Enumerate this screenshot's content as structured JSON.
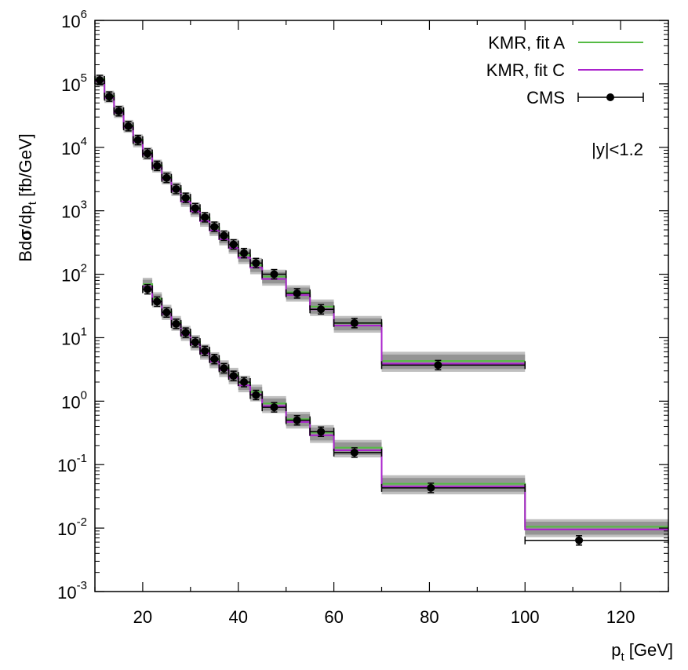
{
  "chart_data": {
    "type": "step-histogram-with-points",
    "xlabel": "p",
    "xlabel_sub": "t",
    "xlabel_unit": " [GeV]",
    "ylabel_parts": [
      "Bd",
      "σ",
      "/dp",
      "t",
      " [fb/GeV]"
    ],
    "annotation": "|y|<1.2",
    "xlim": [
      10,
      130
    ],
    "ylim_log10": [
      -3,
      6
    ],
    "x_ticks": [
      20,
      40,
      60,
      80,
      100,
      120
    ],
    "y_ticks": [
      {
        "base": "10",
        "exp": "6",
        "value": 6
      },
      {
        "base": "10",
        "exp": "5",
        "value": 5
      },
      {
        "base": "10",
        "exp": "4",
        "value": 4
      },
      {
        "base": "10",
        "exp": "3",
        "value": 3
      },
      {
        "base": "10",
        "exp": "2",
        "value": 2
      },
      {
        "base": "10",
        "exp": "1",
        "value": 1
      },
      {
        "base": "10",
        "exp": "0",
        "value": 0
      },
      {
        "base": "10",
        "exp": "-1",
        "value": -1
      },
      {
        "base": "10",
        "exp": "-2",
        "value": -2
      },
      {
        "base": "10",
        "exp": "-3",
        "value": -3
      }
    ],
    "legend": [
      {
        "label": "KMR, fit A",
        "color": "#55bb44",
        "kind": "line"
      },
      {
        "label": "KMR, fit C",
        "color": "#aa22cc",
        "kind": "line"
      },
      {
        "label": "CMS",
        "color": "#000000",
        "kind": "point"
      }
    ],
    "band_color": "#9a9a9a",
    "series": [
      {
        "name": "upper",
        "bins": [
          {
            "lo": 10,
            "hi": 12,
            "fitA": 120000,
            "fitC": 110000,
            "band": [
              90000,
              140000
            ],
            "cms": 115000
          },
          {
            "lo": 12,
            "hi": 14,
            "fitA": 65000,
            "fitC": 60000,
            "band": [
              50000,
              78000
            ],
            "cms": 63000
          },
          {
            "lo": 14,
            "hi": 16,
            "fitA": 38000,
            "fitC": 35000,
            "band": [
              29000,
              46000
            ],
            "cms": 37000
          },
          {
            "lo": 16,
            "hi": 18,
            "fitA": 22000,
            "fitC": 20500,
            "band": [
              17000,
              27000
            ],
            "cms": 21500
          },
          {
            "lo": 18,
            "hi": 20,
            "fitA": 13200,
            "fitC": 12200,
            "band": [
              10000,
              16000
            ],
            "cms": 13000
          },
          {
            "lo": 20,
            "hi": 22,
            "fitA": 8200,
            "fitC": 7600,
            "band": [
              6300,
              10000
            ],
            "cms": 8000
          },
          {
            "lo": 22,
            "hi": 24,
            "fitA": 5200,
            "fitC": 4800,
            "band": [
              4000,
              6400
            ],
            "cms": 5100
          },
          {
            "lo": 24,
            "hi": 26,
            "fitA": 3400,
            "fitC": 3100,
            "band": [
              2600,
              4200
            ],
            "cms": 3300
          },
          {
            "lo": 26,
            "hi": 28,
            "fitA": 2250,
            "fitC": 2050,
            "band": [
              1700,
              2800
            ],
            "cms": 2200
          },
          {
            "lo": 28,
            "hi": 30,
            "fitA": 1550,
            "fitC": 1400,
            "band": [
              1150,
              1950
            ],
            "cms": 1600
          },
          {
            "lo": 30,
            "hi": 32,
            "fitA": 1080,
            "fitC": 980,
            "band": [
              800,
              1350
            ],
            "cms": 1100
          },
          {
            "lo": 32,
            "hi": 34,
            "fitA": 760,
            "fitC": 690,
            "band": [
              560,
              950
            ],
            "cms": 790
          },
          {
            "lo": 34,
            "hi": 36,
            "fitA": 540,
            "fitC": 490,
            "band": [
              400,
              680
            ],
            "cms": 560
          },
          {
            "lo": 36,
            "hi": 38,
            "fitA": 390,
            "fitC": 355,
            "band": [
              285,
              490
            ],
            "cms": 405
          },
          {
            "lo": 38,
            "hi": 40,
            "fitA": 285,
            "fitC": 260,
            "band": [
              210,
              360
            ],
            "cms": 295
          },
          {
            "lo": 40,
            "hi": 42.5,
            "fitA": 200,
            "fitC": 182,
            "band": [
              145,
              255
            ],
            "cms": 215
          },
          {
            "lo": 42.5,
            "hi": 45,
            "fitA": 140,
            "fitC": 127,
            "band": [
              100,
              180
            ],
            "cms": 150
          },
          {
            "lo": 45,
            "hi": 50,
            "fitA": 92,
            "fitC": 84,
            "band": [
              66,
              118
            ],
            "cms": 100
          },
          {
            "lo": 50,
            "hi": 55,
            "fitA": 52,
            "fitC": 47,
            "band": [
              37,
              67
            ],
            "cms": 50
          },
          {
            "lo": 55,
            "hi": 60,
            "fitA": 31,
            "fitC": 28,
            "band": [
              22,
              40
            ],
            "cms": 28
          },
          {
            "lo": 60,
            "hi": 70,
            "fitA": 17,
            "fitC": 15.5,
            "band": [
              12,
              22
            ],
            "cms": 17
          },
          {
            "lo": 70,
            "hi": 100,
            "fitA": 4.3,
            "fitC": 3.9,
            "band": [
              2.9,
              6.0
            ],
            "cms": 3.7
          }
        ],
        "cms_x": [
          11,
          13,
          15,
          17,
          19,
          21,
          23,
          25,
          27,
          29,
          31,
          33,
          35,
          37,
          39,
          41.2,
          43.7,
          47.5,
          52.3,
          57.3,
          64.3,
          81.8
        ]
      },
      {
        "name": "lower",
        "bins": [
          {
            "lo": 20,
            "hi": 22,
            "fitA": 70,
            "fitC": 64,
            "band": [
              52,
              88
            ],
            "cms": 58
          },
          {
            "lo": 22,
            "hi": 24,
            "fitA": 41,
            "fitC": 37,
            "band": [
              30,
              52
            ],
            "cms": 37
          },
          {
            "lo": 24,
            "hi": 26,
            "fitA": 26,
            "fitC": 23.5,
            "band": [
              19,
              33
            ],
            "cms": 25
          },
          {
            "lo": 26,
            "hi": 28,
            "fitA": 17.5,
            "fitC": 16,
            "band": [
              12.8,
              22
            ],
            "cms": 16.5
          },
          {
            "lo": 28,
            "hi": 30,
            "fitA": 12.2,
            "fitC": 11.1,
            "band": [
              8.9,
              15.4
            ],
            "cms": 12
          },
          {
            "lo": 30,
            "hi": 32,
            "fitA": 8.7,
            "fitC": 7.9,
            "band": [
              6.3,
              11
            ],
            "cms": 8.5
          },
          {
            "lo": 32,
            "hi": 34,
            "fitA": 6.2,
            "fitC": 5.7,
            "band": [
              4.5,
              7.9
            ],
            "cms": 6.2
          },
          {
            "lo": 34,
            "hi": 36,
            "fitA": 4.6,
            "fitC": 4.2,
            "band": [
              3.3,
              5.9
            ],
            "cms": 4.6
          },
          {
            "lo": 36,
            "hi": 38,
            "fitA": 3.4,
            "fitC": 3.1,
            "band": [
              2.4,
              4.4
            ],
            "cms": 3.3
          },
          {
            "lo": 38,
            "hi": 40,
            "fitA": 2.6,
            "fitC": 2.35,
            "band": [
              1.85,
              3.35
            ],
            "cms": 2.5
          },
          {
            "lo": 40,
            "hi": 42.5,
            "fitA": 1.95,
            "fitC": 1.77,
            "band": [
              1.38,
              2.52
            ],
            "cms": 2.0
          },
          {
            "lo": 42.5,
            "hi": 45,
            "fitA": 1.4,
            "fitC": 1.27,
            "band": [
              0.99,
              1.82
            ],
            "cms": 1.25
          },
          {
            "lo": 45,
            "hi": 50,
            "fitA": 0.92,
            "fitC": 0.84,
            "band": [
              0.65,
              1.2
            ],
            "cms": 0.8
          },
          {
            "lo": 50,
            "hi": 55,
            "fitA": 0.52,
            "fitC": 0.47,
            "band": [
              0.37,
              0.68
            ],
            "cms": 0.5
          },
          {
            "lo": 55,
            "hi": 60,
            "fitA": 0.32,
            "fitC": 0.29,
            "band": [
              0.22,
              0.42
            ],
            "cms": 0.33
          },
          {
            "lo": 60,
            "hi": 70,
            "fitA": 0.185,
            "fitC": 0.168,
            "band": [
              0.13,
              0.245
            ],
            "cms": 0.155
          },
          {
            "lo": 70,
            "hi": 100,
            "fitA": 0.05,
            "fitC": 0.045,
            "band": [
              0.034,
              0.068
            ],
            "cms": 0.043
          },
          {
            "lo": 100,
            "hi": 130,
            "fitA": 0.0105,
            "fitC": 0.0095,
            "band": [
              0.0072,
              0.0138
            ],
            "cms": 0.0064
          }
        ],
        "cms_x": [
          21,
          23,
          25,
          27,
          29,
          31,
          33,
          35,
          37,
          39,
          41.2,
          43.7,
          47.5,
          52.3,
          57.3,
          64.3,
          80.3,
          111.3
        ]
      }
    ]
  }
}
